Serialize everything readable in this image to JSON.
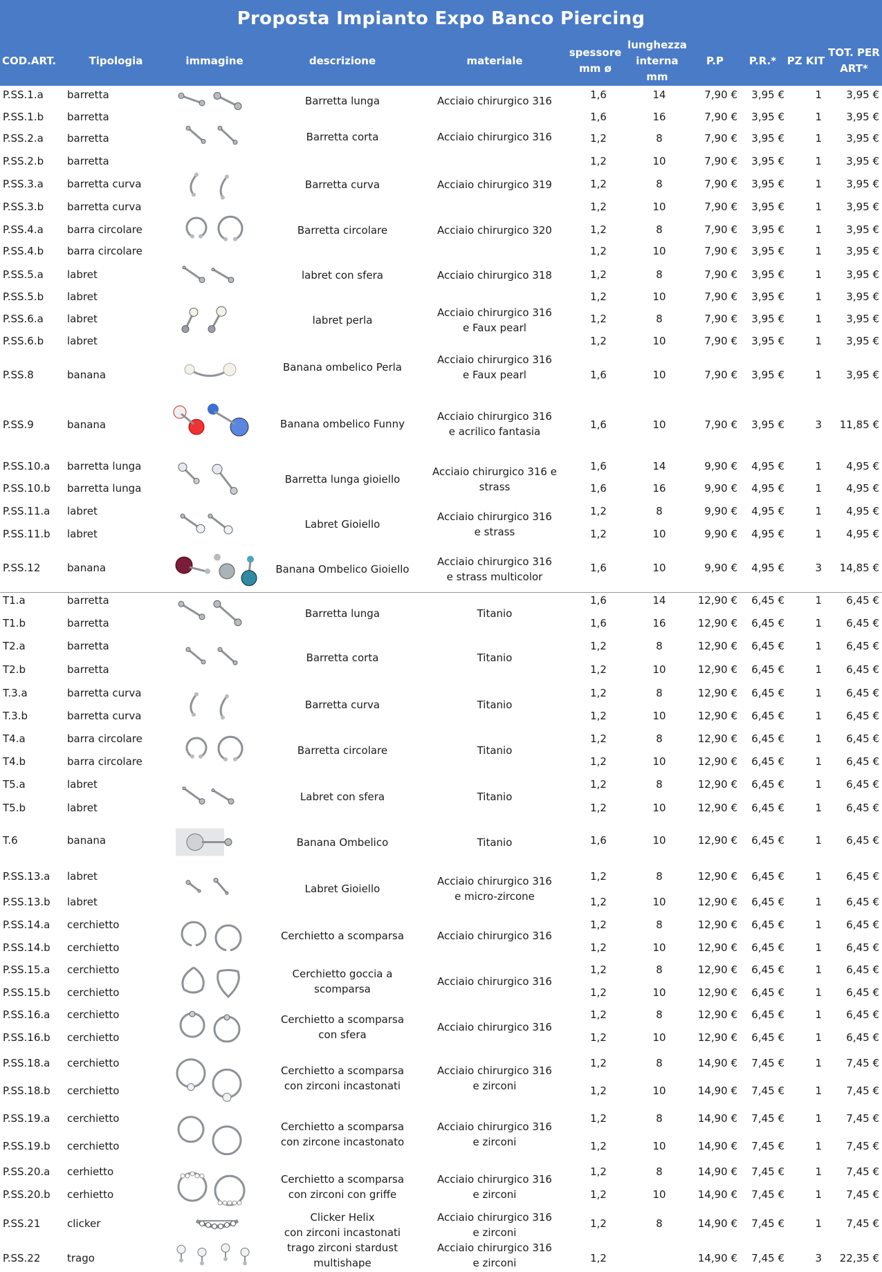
{
  "title": "Proposta Impianto Expo Banco Piercing",
  "columns": [
    {
      "key": "cod",
      "label": "COD.ART."
    },
    {
      "key": "tip",
      "label": "Tipologia"
    },
    {
      "key": "img",
      "label": "immagine"
    },
    {
      "key": "desc",
      "label": "descrizione"
    },
    {
      "key": "mat",
      "label": "materiale"
    },
    {
      "key": "sp",
      "label": "spessore\nmm ø"
    },
    {
      "key": "len",
      "label": "lunghezza\ninterna\nmm"
    },
    {
      "key": "pp",
      "label": "P.P"
    },
    {
      "key": "pr",
      "label": "P.R.*"
    },
    {
      "key": "pz",
      "label": "PZ KIT"
    },
    {
      "key": "tot",
      "label": "TOT. PER\nART*"
    }
  ],
  "rows": [
    {
      "cod": "P.SS.1.a",
      "tip": "barretta",
      "sp": "1,6",
      "len": "14",
      "pp": "7,90 €",
      "pr": "3,95 €",
      "pz": "1",
      "tot": "3,95 €"
    },
    {
      "cod": "P.SS.1.b",
      "tip": "barretta",
      "sp": "1,6",
      "len": "16",
      "pp": "7,90 €",
      "pr": "3,95 €",
      "pz": "1",
      "tot": "3,95 €"
    },
    {
      "cod": "P.SS.2.a",
      "tip": "barretta",
      "sp": "1,2",
      "len": "8",
      "pp": "7,90 €",
      "pr": "3,95 €",
      "pz": "1",
      "tot": "3,95 €"
    },
    {
      "cod": "P.SS.2.b",
      "tip": "barretta",
      "sp": "1,2",
      "len": "10",
      "pp": "7,90 €",
      "pr": "3,95 €",
      "pz": "1",
      "tot": "3,95 €"
    },
    {
      "cod": "P.SS.3.a",
      "tip": "barretta curva",
      "sp": "1,2",
      "len": "8",
      "pp": "7,90 €",
      "pr": "3,95 €",
      "pz": "1",
      "tot": "3,95 €"
    },
    {
      "cod": "P.SS.3.b",
      "tip": "barretta curva",
      "sp": "1,2",
      "len": "10",
      "pp": "7,90 €",
      "pr": "3,95 €",
      "pz": "1",
      "tot": "3,95 €"
    },
    {
      "cod": "P.SS.4.a",
      "tip": "barra circolare",
      "sp": "1,2",
      "len": "8",
      "pp": "7,90 €",
      "pr": "3,95 €",
      "pz": "1",
      "tot": "3,95 €"
    },
    {
      "cod": "P.SS.4.b",
      "tip": "barra circolare",
      "sp": "1,2",
      "len": "10",
      "pp": "7,90 €",
      "pr": "3,95 €",
      "pz": "1",
      "tot": "3,95 €"
    },
    {
      "cod": "P.SS.5.a",
      "tip": "labret",
      "sp": "1,2",
      "len": "8",
      "pp": "7,90 €",
      "pr": "3,95 €",
      "pz": "1",
      "tot": "3,95 €"
    },
    {
      "cod": "P.SS.5.b",
      "tip": "labret",
      "sp": "1,2",
      "len": "10",
      "pp": "7,90 €",
      "pr": "3,95 €",
      "pz": "1",
      "tot": "3,95 €"
    },
    {
      "cod": "P.SS.6.a",
      "tip": "labret",
      "sp": "1,2",
      "len": "8",
      "pp": "7,90 €",
      "pr": "3,95 €",
      "pz": "1",
      "tot": "3,95 €"
    },
    {
      "cod": "P.SS.6.b",
      "tip": "labret",
      "sp": "1,2",
      "len": "10",
      "pp": "7,90 €",
      "pr": "3,95 €",
      "pz": "1",
      "tot": "3,95 €"
    },
    {
      "cod": "P.SS.8",
      "tip": "banana",
      "sp": "1,6",
      "len": "10",
      "pp": "7,90 €",
      "pr": "3,95 €",
      "pz": "1",
      "tot": "3,95 €"
    },
    {
      "cod": "P.SS.9",
      "tip": "banana",
      "sp": "1,6",
      "len": "10",
      "pp": "7,90 €",
      "pr": "3,95 €",
      "pz": "3",
      "tot": "11,85 €"
    },
    {
      "cod": "P.SS.10.a",
      "tip": "barretta lunga",
      "sp": "1,6",
      "len": "14",
      "pp": "9,90 €",
      "pr": "4,95 €",
      "pz": "1",
      "tot": "4,95 €"
    },
    {
      "cod": "P.SS.10.b",
      "tip": "barretta lunga",
      "sp": "1,6",
      "len": "16",
      "pp": "9,90 €",
      "pr": "4,95 €",
      "pz": "1",
      "tot": "4,95 €"
    },
    {
      "cod": "P.SS.11.a",
      "tip": "labret",
      "sp": "1,2",
      "len": "8",
      "pp": "9,90 €",
      "pr": "4,95 €",
      "pz": "1",
      "tot": "4,95 €"
    },
    {
      "cod": "P.SS.11.b",
      "tip": "labret",
      "sp": "1,2",
      "len": "10",
      "pp": "9,90 €",
      "pr": "4,95 €",
      "pz": "1",
      "tot": "4,95 €"
    },
    {
      "cod": "P.SS.12",
      "tip": "banana",
      "sp": "1,6",
      "len": "10",
      "pp": "9,90 €",
      "pr": "4,95 €",
      "pz": "3",
      "tot": "14,85 €"
    },
    {
      "cod": "T1.a",
      "tip": "barretta",
      "sp": "1,6",
      "len": "14",
      "pp": "12,90 €",
      "pr": "6,45 €",
      "pz": "1",
      "tot": "6,45 €"
    },
    {
      "cod": "T1.b",
      "tip": "barretta",
      "sp": "1,6",
      "len": "16",
      "pp": "12,90 €",
      "pr": "6,45 €",
      "pz": "1",
      "tot": "6,45 €"
    },
    {
      "cod": "T2.a",
      "tip": "barretta",
      "sp": "1,2",
      "len": "8",
      "pp": "12,90 €",
      "pr": "6,45 €",
      "pz": "1",
      "tot": "6,45 €"
    },
    {
      "cod": "T2.b",
      "tip": "barretta",
      "sp": "1,2",
      "len": "10",
      "pp": "12,90 €",
      "pr": "6,45 €",
      "pz": "1",
      "tot": "6,45 €"
    },
    {
      "cod": "T.3.a",
      "tip": "barretta curva",
      "sp": "1,2",
      "len": "8",
      "pp": "12,90 €",
      "pr": "6,45 €",
      "pz": "1",
      "tot": "6,45 €"
    },
    {
      "cod": "T.3.b",
      "tip": "barretta curva",
      "sp": "1,2",
      "len": "10",
      "pp": "12,90 €",
      "pr": "6,45 €",
      "pz": "1",
      "tot": "6,45 €"
    },
    {
      "cod": "T4.a",
      "tip": "barra circolare",
      "sp": "1,2",
      "len": "8",
      "pp": "12,90 €",
      "pr": "6,45 €",
      "pz": "1",
      "tot": "6,45 €"
    },
    {
      "cod": "T4.b",
      "tip": "barra circolare",
      "sp": "1,2",
      "len": "10",
      "pp": "12,90 €",
      "pr": "6,45 €",
      "pz": "1",
      "tot": "6,45 €"
    },
    {
      "cod": "T5.a",
      "tip": "labret",
      "sp": "1,2",
      "len": "8",
      "pp": "12,90 €",
      "pr": "6,45 €",
      "pz": "1",
      "tot": "6,45 €"
    },
    {
      "cod": "T5.b",
      "tip": "labret",
      "sp": "1,2",
      "len": "10",
      "pp": "12,90 €",
      "pr": "6,45 €",
      "pz": "1",
      "tot": "6,45 €"
    },
    {
      "cod": "T.6",
      "tip": "banana",
      "sp": "1,6",
      "len": "10",
      "pp": "12,90 €",
      "pr": "6,45 €",
      "pz": "1",
      "tot": "6,45 €"
    },
    {
      "cod": "P.SS.13.a",
      "tip": "labret",
      "sp": "1,2",
      "len": "8",
      "pp": "12,90 €",
      "pr": "6,45 €",
      "pz": "1",
      "tot": "6,45 €"
    },
    {
      "cod": "P.SS.13.b",
      "tip": "labret",
      "sp": "1,2",
      "len": "10",
      "pp": "12,90 €",
      "pr": "6,45 €",
      "pz": "1",
      "tot": "6,45 €"
    },
    {
      "cod": "P.SS.14.a",
      "tip": "cerchietto",
      "sp": "1,2",
      "len": "8",
      "pp": "12,90 €",
      "pr": "6,45 €",
      "pz": "1",
      "tot": "6,45 €"
    },
    {
      "cod": "P.SS.14.b",
      "tip": "cerchietto",
      "sp": "1,2",
      "len": "10",
      "pp": "12,90 €",
      "pr": "6,45 €",
      "pz": "1",
      "tot": "6,45 €"
    },
    {
      "cod": "P.SS.15.a",
      "tip": "cerchietto",
      "sp": "1,2",
      "len": "8",
      "pp": "12,90 €",
      "pr": "6,45 €",
      "pz": "1",
      "tot": "6,45 €"
    },
    {
      "cod": "P.SS.15.b",
      "tip": "cerchietto",
      "sp": "1,2",
      "len": "10",
      "pp": "12,90 €",
      "pr": "6,45 €",
      "pz": "1",
      "tot": "6,45 €"
    },
    {
      "cod": "P.SS.16.a",
      "tip": "cerchietto",
      "sp": "1,2",
      "len": "8",
      "pp": "12,90 €",
      "pr": "6,45 €",
      "pz": "1",
      "tot": "6,45 €"
    },
    {
      "cod": "P.SS.16.b",
      "tip": "cerchietto",
      "sp": "1,2",
      "len": "10",
      "pp": "12,90 €",
      "pr": "6,45 €",
      "pz": "1",
      "tot": "6,45 €"
    },
    {
      "cod": "P.SS.18.a",
      "tip": "cerchietto",
      "sp": "1,2",
      "len": "8",
      "pp": "14,90 €",
      "pr": "7,45 €",
      "pz": "1",
      "tot": "7,45 €"
    },
    {
      "cod": "P.SS.18.b",
      "tip": "cerchietto",
      "sp": "1,2",
      "len": "10",
      "pp": "14,90 €",
      "pr": "7,45 €",
      "pz": "1",
      "tot": "7,45 €"
    },
    {
      "cod": "P.SS.19.a",
      "tip": "cerchietto",
      "sp": "1,2",
      "len": "8",
      "pp": "14,90 €",
      "pr": "7,45 €",
      "pz": "1",
      "tot": "7,45 €"
    },
    {
      "cod": "P.SS.19.b",
      "tip": "cerchietto",
      "sp": "1,2",
      "len": "10",
      "pp": "14,90 €",
      "pr": "7,45 €",
      "pz": "1",
      "tot": "7,45 €"
    },
    {
      "cod": "P.SS.20.a",
      "tip": "cerhietto",
      "sp": "1,2",
      "len": "8",
      "pp": "14,90 €",
      "pr": "7,45 €",
      "pz": "1",
      "tot": "7,45 €"
    },
    {
      "cod": "P.SS.20.b",
      "tip": "cerhietto",
      "sp": "1,2",
      "len": "10",
      "pp": "14,90 €",
      "pr": "7,45 €",
      "pz": "1",
      "tot": "7,45 €"
    },
    {
      "cod": "P.SS.21",
      "tip": "clicker",
      "sp": "1,2",
      "len": "8",
      "pp": "14,90 €",
      "pr": "7,45 €",
      "pz": "1",
      "tot": "7,45 €"
    },
    {
      "cod": "P.SS.22",
      "tip": "trago",
      "sp": "1,2",
      "len": "",
      "pp": "14,90 €",
      "pr": "7,45 €",
      "pz": "3",
      "tot": "22,35 €"
    }
  ],
  "groups": [
    {
      "desc": "Barretta lunga",
      "mat": "Acciaio chirurgico 316",
      "icon": "straight-barbell-icon"
    },
    {
      "desc": "Barretta corta",
      "mat": "Acciaio chirurgico 316",
      "icon": "short-barbell-icon"
    },
    {
      "desc": "Barretta curva",
      "mat": "Acciaio chirurgico 319",
      "icon": "curved-barbell-icon"
    },
    {
      "desc": "Barretta circolare",
      "mat": "Acciaio chirurgico 320",
      "icon": "circular-barbell-icon"
    },
    {
      "desc": "labret con sfera",
      "mat": "Acciaio chirurgico 318",
      "icon": "labret-icon"
    },
    {
      "desc": "labret perla",
      "mat": "Acciaio chirurgico 316\ne Faux pearl",
      "icon": "pearl-labret-icon"
    },
    {
      "desc": "Banana ombelico Perla",
      "mat": "Acciaio chirurgico 316\ne Faux pearl",
      "icon": "pearl-banana-icon"
    },
    {
      "desc": "Banana ombelico Funny",
      "mat": "Acciaio  chirurgico 316\ne acrilico fantasia",
      "icon": "funny-banana-icon"
    },
    {
      "desc": "Barretta lunga gioiello",
      "mat": "Acciaio chirurgico 316 e strass",
      "icon": "jewel-barbell-icon"
    },
    {
      "desc": "Labret Gioiello",
      "mat": "Acciaio chirurgico 316\ne strass",
      "icon": "jewel-labret-icon"
    },
    {
      "desc": "Banana Ombelico Gioiello",
      "mat": "Acciaio chirurgico 316\ne strass multicolor",
      "icon": "jewel-banana-icon"
    },
    {
      "desc": "Barretta lunga",
      "mat": "Titanio",
      "icon": "straight-barbell-icon"
    },
    {
      "desc": "Barretta corta",
      "mat": "Titanio",
      "icon": "short-barbell-icon"
    },
    {
      "desc": "Barretta curva",
      "mat": "Titanio",
      "icon": "curved-barbell-icon"
    },
    {
      "desc": "Barretta circolare",
      "mat": "Titanio",
      "icon": "circular-barbell-icon"
    },
    {
      "desc": "Labret con sfera",
      "mat": "Titanio",
      "icon": "labret-icon"
    },
    {
      "desc": "Banana Ombelico",
      "mat": "Titanio",
      "icon": "banana-icon"
    },
    {
      "desc": "Labret Gioiello",
      "mat": "Acciaio chirurgico 316\ne micro-zircone",
      "icon": "micro-labret-icon"
    },
    {
      "desc": "Cerchietto a scomparsa",
      "mat": "Acciaio chirurgico 316",
      "icon": "seamless-ring-icon"
    },
    {
      "desc": "Cerchietto goccia a scomparsa",
      "mat": "Acciaio chirurgico 316",
      "icon": "drop-ring-icon"
    },
    {
      "desc": "Cerchietto a scomparsa\ncon sfera",
      "mat": "Acciaio chirurgico 316",
      "icon": "ball-ring-icon"
    },
    {
      "desc": "Cerchietto a scomparsa\ncon zirconi incastonati",
      "mat": "Acciaio chirurgico 316\ne zirconi",
      "icon": "set-zircon-ring-icon"
    },
    {
      "desc": "Cerchietto a scomparsa\ncon zircone incastonato",
      "mat": "Acciaio chirurgico 316\ne zirconi",
      "icon": "single-zircon-ring-icon"
    },
    {
      "desc": "Cerchietto a scomparsa\ncon zirconi con griffe",
      "mat": "Acciaio chirurgico 316\ne zirconi",
      "icon": "prong-zircon-ring-icon"
    },
    {
      "desc": "Clicker Helix\ncon zirconi incastonati",
      "mat": "Acciaio chirurgico 316\ne zirconi",
      "icon": "helix-clicker-icon"
    },
    {
      "desc": "trago zirconi stardust\nmultishape",
      "mat": "Acciaio chirurgico 316\ne zirconi",
      "icon": "tragus-studs-icon"
    }
  ]
}
